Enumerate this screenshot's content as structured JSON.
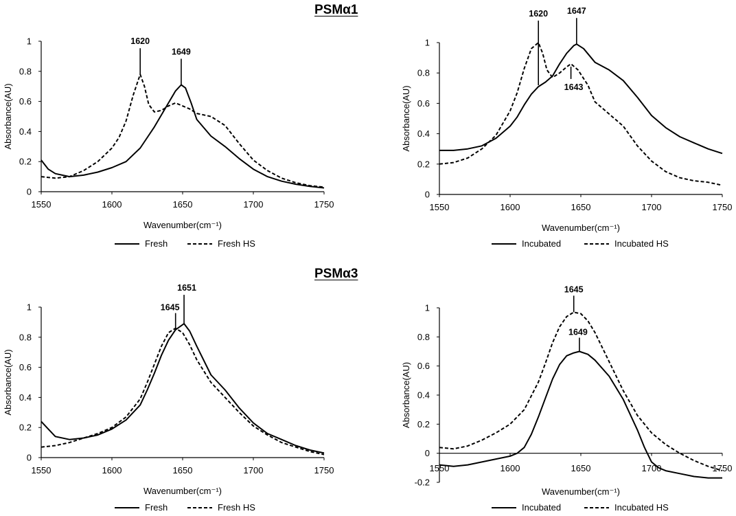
{
  "row_titles": {
    "top": "PSMα1",
    "bottom": "PSMα3"
  },
  "colors": {
    "line": "#000000",
    "background": "#ffffff"
  },
  "chart_data": [
    {
      "id": "psma1-fresh",
      "type": "line",
      "title": "",
      "xlabel": "Wavenumber(cm⁻¹)",
      "ylabel": "Absorbance(AU)",
      "xlim": [
        1550,
        1750
      ],
      "ylim": [
        0,
        1
      ],
      "xticks": [
        1550,
        1600,
        1650,
        1700,
        1750
      ],
      "yticks": [
        0,
        0.2,
        0.4,
        0.6,
        0.8,
        1
      ],
      "ytick_labels": [
        "0",
        "0.2",
        "0.4",
        "0.6",
        "0.8",
        "1"
      ],
      "zero_line": false,
      "legend_position": "bottom",
      "series": [
        {
          "name": "Fresh",
          "style": "solid",
          "x": [
            1550,
            1555,
            1560,
            1570,
            1580,
            1590,
            1600,
            1610,
            1620,
            1630,
            1640,
            1645,
            1649,
            1652,
            1656,
            1660,
            1670,
            1680,
            1690,
            1700,
            1710,
            1720,
            1730,
            1740,
            1750
          ],
          "y": [
            0.21,
            0.15,
            0.12,
            0.1,
            0.11,
            0.13,
            0.16,
            0.2,
            0.29,
            0.43,
            0.59,
            0.67,
            0.71,
            0.69,
            0.59,
            0.48,
            0.37,
            0.3,
            0.22,
            0.15,
            0.1,
            0.07,
            0.05,
            0.035,
            0.025
          ]
        },
        {
          "name": "Fresh HS",
          "style": "dashed",
          "x": [
            1550,
            1560,
            1570,
            1580,
            1590,
            1600,
            1605,
            1610,
            1615,
            1620,
            1623,
            1626,
            1630,
            1635,
            1640,
            1645,
            1650,
            1655,
            1660,
            1670,
            1680,
            1690,
            1700,
            1710,
            1720,
            1730,
            1740,
            1750
          ],
          "y": [
            0.1,
            0.09,
            0.1,
            0.14,
            0.2,
            0.29,
            0.36,
            0.47,
            0.64,
            0.78,
            0.7,
            0.58,
            0.53,
            0.54,
            0.57,
            0.59,
            0.57,
            0.55,
            0.52,
            0.5,
            0.44,
            0.32,
            0.21,
            0.14,
            0.09,
            0.06,
            0.04,
            0.03
          ]
        }
      ],
      "annotations": [
        {
          "label": "1620",
          "x": 1620,
          "y": 0.78
        },
        {
          "label": "1649",
          "x": 1649,
          "y": 0.71
        }
      ]
    },
    {
      "id": "psma1-incubated",
      "type": "line",
      "title": "",
      "xlabel": "Wavenumber(cm⁻¹)",
      "ylabel": "Absorbance(AU)",
      "xlim": [
        1550,
        1750
      ],
      "ylim": [
        0,
        1
      ],
      "xticks": [
        1550,
        1600,
        1650,
        1700,
        1750
      ],
      "yticks": [
        0,
        0.2,
        0.4,
        0.6,
        0.8,
        1
      ],
      "ytick_labels": [
        "0",
        "0.2",
        "0.4",
        "0.6",
        "0.8",
        "1"
      ],
      "zero_line": false,
      "legend_position": "bottom",
      "series": [
        {
          "name": "Incubated",
          "style": "solid",
          "x": [
            1550,
            1560,
            1570,
            1580,
            1590,
            1600,
            1605,
            1610,
            1615,
            1620,
            1625,
            1630,
            1635,
            1640,
            1645,
            1647,
            1652,
            1660,
            1670,
            1680,
            1690,
            1700,
            1710,
            1720,
            1730,
            1740,
            1750
          ],
          "y": [
            0.29,
            0.29,
            0.3,
            0.32,
            0.37,
            0.45,
            0.51,
            0.59,
            0.66,
            0.71,
            0.74,
            0.78,
            0.86,
            0.93,
            0.98,
            0.99,
            0.96,
            0.87,
            0.82,
            0.75,
            0.64,
            0.52,
            0.44,
            0.38,
            0.34,
            0.3,
            0.27
          ]
        },
        {
          "name": "Incubated HS",
          "style": "dashed",
          "x": [
            1550,
            1560,
            1570,
            1580,
            1590,
            1600,
            1605,
            1610,
            1615,
            1620,
            1623,
            1626,
            1630,
            1635,
            1640,
            1643,
            1648,
            1655,
            1660,
            1670,
            1680,
            1690,
            1700,
            1710,
            1720,
            1730,
            1740,
            1750
          ],
          "y": [
            0.2,
            0.21,
            0.24,
            0.3,
            0.39,
            0.55,
            0.67,
            0.83,
            0.96,
            1.0,
            0.93,
            0.82,
            0.77,
            0.8,
            0.84,
            0.86,
            0.82,
            0.72,
            0.61,
            0.53,
            0.45,
            0.32,
            0.22,
            0.15,
            0.11,
            0.09,
            0.08,
            0.06
          ]
        }
      ],
      "annotations": [
        {
          "label": "1620",
          "x": 1620,
          "y": 1.0
        },
        {
          "label": "1647",
          "x": 1647,
          "y": 0.99
        },
        {
          "label": "1643",
          "x": 1643,
          "y": 0.86
        }
      ]
    },
    {
      "id": "psma3-fresh",
      "type": "line",
      "title": "",
      "xlabel": "Wavenumber(cm⁻¹)",
      "ylabel": "Absorbance(AU)",
      "xlim": [
        1550,
        1750
      ],
      "ylim": [
        0,
        1
      ],
      "xticks": [
        1550,
        1600,
        1650,
        1700,
        1750
      ],
      "yticks": [
        0,
        0.2,
        0.4,
        0.6,
        0.8,
        1
      ],
      "ytick_labels": [
        "0",
        "0.2",
        "0.4",
        "0.6",
        "0.8",
        "1"
      ],
      "zero_line": false,
      "legend_position": "bottom",
      "series": [
        {
          "name": "Fresh",
          "style": "solid",
          "x": [
            1550,
            1555,
            1560,
            1570,
            1580,
            1590,
            1600,
            1610,
            1620,
            1625,
            1630,
            1635,
            1640,
            1645,
            1651,
            1655,
            1660,
            1670,
            1680,
            1690,
            1700,
            1710,
            1720,
            1730,
            1740,
            1750
          ],
          "y": [
            0.24,
            0.19,
            0.14,
            0.12,
            0.13,
            0.15,
            0.19,
            0.25,
            0.35,
            0.45,
            0.56,
            0.68,
            0.78,
            0.85,
            0.89,
            0.84,
            0.74,
            0.55,
            0.45,
            0.33,
            0.23,
            0.16,
            0.12,
            0.08,
            0.05,
            0.03
          ]
        },
        {
          "name": "Fresh HS",
          "style": "dashed",
          "x": [
            1550,
            1560,
            1570,
            1580,
            1590,
            1600,
            1610,
            1620,
            1625,
            1630,
            1635,
            1640,
            1645,
            1650,
            1655,
            1660,
            1670,
            1680,
            1690,
            1700,
            1710,
            1720,
            1730,
            1740,
            1750
          ],
          "y": [
            0.07,
            0.08,
            0.1,
            0.13,
            0.16,
            0.2,
            0.27,
            0.39,
            0.5,
            0.62,
            0.74,
            0.83,
            0.86,
            0.83,
            0.75,
            0.65,
            0.5,
            0.4,
            0.3,
            0.21,
            0.15,
            0.1,
            0.07,
            0.04,
            0.02
          ]
        }
      ],
      "annotations": [
        {
          "label": "1645",
          "x": 1645,
          "y": 0.86
        },
        {
          "label": "1651",
          "x": 1651,
          "y": 0.89
        }
      ]
    },
    {
      "id": "psma3-incubated",
      "type": "line",
      "title": "",
      "xlabel": "Wavenumber(cm⁻¹)",
      "ylabel": "Absorbance(AU)",
      "xlim": [
        1550,
        1750
      ],
      "ylim": [
        -0.2,
        1
      ],
      "xticks": [
        1550,
        1600,
        1650,
        1700,
        1750
      ],
      "yticks": [
        -0.2,
        0,
        0.2,
        0.4,
        0.6,
        0.8,
        1
      ],
      "ytick_labels": [
        "-0.2",
        "0",
        "0.2",
        "0.4",
        "0.6",
        "0.8",
        "1"
      ],
      "zero_line": true,
      "legend_position": "bottom",
      "series": [
        {
          "name": "Incubated",
          "style": "solid",
          "x": [
            1550,
            1560,
            1570,
            1580,
            1590,
            1600,
            1605,
            1610,
            1615,
            1620,
            1625,
            1630,
            1635,
            1640,
            1645,
            1649,
            1655,
            1660,
            1670,
            1680,
            1690,
            1695,
            1700,
            1705,
            1710,
            1720,
            1730,
            1740,
            1750
          ],
          "y": [
            -0.08,
            -0.09,
            -0.08,
            -0.06,
            -0.04,
            -0.02,
            0.0,
            0.04,
            0.13,
            0.25,
            0.38,
            0.51,
            0.61,
            0.67,
            0.69,
            0.7,
            0.68,
            0.64,
            0.53,
            0.37,
            0.16,
            0.04,
            -0.06,
            -0.1,
            -0.12,
            -0.14,
            -0.16,
            -0.17,
            -0.17
          ]
        },
        {
          "name": "Incubated HS",
          "style": "dashed",
          "x": [
            1550,
            1560,
            1570,
            1580,
            1590,
            1600,
            1610,
            1620,
            1625,
            1630,
            1635,
            1640,
            1645,
            1650,
            1655,
            1660,
            1670,
            1680,
            1690,
            1700,
            1710,
            1720,
            1730,
            1740,
            1750
          ],
          "y": [
            0.04,
            0.03,
            0.05,
            0.09,
            0.14,
            0.2,
            0.3,
            0.49,
            0.62,
            0.76,
            0.87,
            0.94,
            0.97,
            0.96,
            0.91,
            0.83,
            0.63,
            0.43,
            0.26,
            0.14,
            0.06,
            0.0,
            -0.05,
            -0.09,
            -0.12
          ]
        }
      ],
      "annotations": [
        {
          "label": "1645",
          "x": 1645,
          "y": 0.97
        },
        {
          "label": "1649",
          "x": 1649,
          "y": 0.7
        }
      ]
    }
  ]
}
